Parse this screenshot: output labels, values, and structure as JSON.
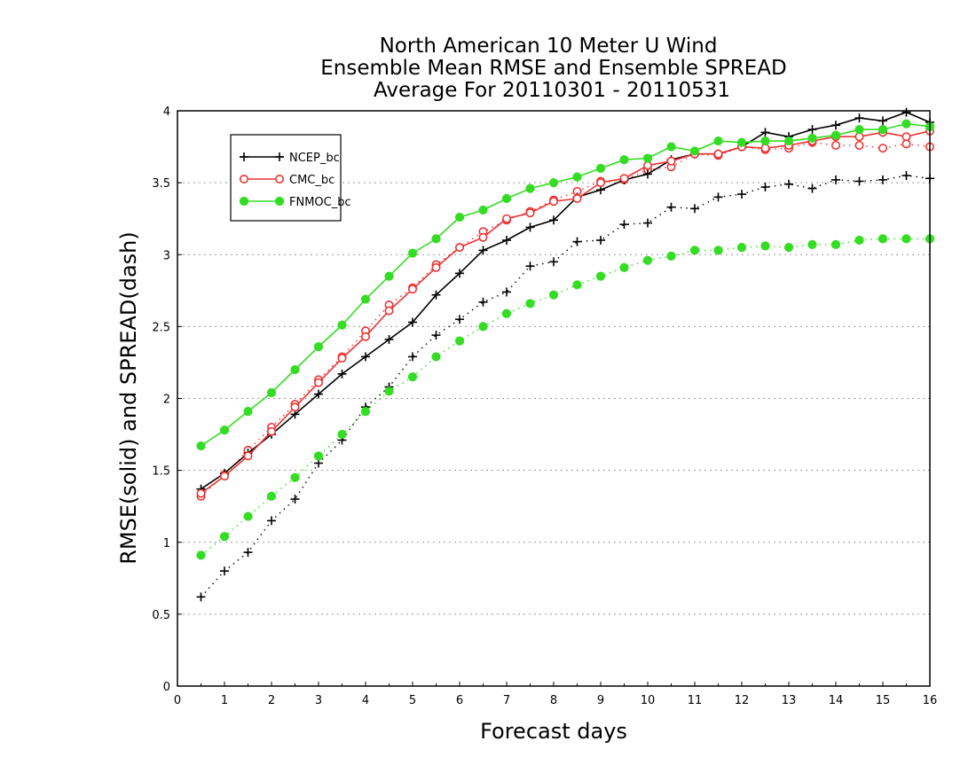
{
  "chart_data": {
    "type": "line",
    "title": [
      "North American 10 Meter U Wind",
      "Ensemble Mean RMSE and Ensemble SPREAD",
      "Average For 20110301 - 20110531"
    ],
    "xlabel": "Forecast days",
    "ylabel": "RMSE(solid) and SPREAD(dash)",
    "xlim": [
      0,
      16
    ],
    "ylim": [
      0,
      4
    ],
    "xticks": [
      "0",
      "1",
      "2",
      "3",
      "4",
      "5",
      "6",
      "7",
      "8",
      "9",
      "10",
      "11",
      "12",
      "13",
      "14",
      "15",
      "16"
    ],
    "yticks": [
      "0",
      "0.5",
      "1",
      "1.5",
      "2",
      "2.5",
      "3",
      "3.5",
      "4"
    ],
    "grid": "horizontal dotted",
    "legend_position": "top-left",
    "x": [
      0.5,
      1,
      1.5,
      2,
      2.5,
      3,
      3.5,
      4,
      4.5,
      5,
      5.5,
      6,
      6.5,
      7,
      7.5,
      8,
      8.5,
      9,
      9.5,
      10,
      10.5,
      11,
      11.5,
      12,
      12.5,
      13,
      13.5,
      14,
      14.5,
      15,
      15.5,
      16
    ],
    "series": [
      {
        "name": "NCEP_bc",
        "color": "#000000",
        "marker": "plus",
        "rmse": [
          1.37,
          1.48,
          1.62,
          1.75,
          1.89,
          2.03,
          2.17,
          2.29,
          2.41,
          2.53,
          2.72,
          2.87,
          3.03,
          3.1,
          3.19,
          3.24,
          3.4,
          3.45,
          3.52,
          3.56,
          3.66,
          3.7,
          3.7,
          3.75,
          3.85,
          3.82,
          3.87,
          3.9,
          3.95,
          3.93,
          3.99,
          3.92
        ],
        "spread": [
          0.62,
          0.8,
          0.93,
          1.15,
          1.3,
          1.55,
          1.71,
          1.94,
          2.08,
          2.29,
          2.44,
          2.55,
          2.67,
          2.74,
          2.92,
          2.95,
          3.09,
          3.1,
          3.21,
          3.22,
          3.33,
          3.32,
          3.4,
          3.42,
          3.47,
          3.49,
          3.46,
          3.52,
          3.51,
          3.52,
          3.55,
          3.53
        ]
      },
      {
        "name": "CMC_bc",
        "color": "#ee3333",
        "marker": "open-circle",
        "rmse": [
          1.34,
          1.46,
          1.6,
          1.77,
          1.94,
          2.11,
          2.28,
          2.43,
          2.61,
          2.76,
          2.91,
          3.05,
          3.12,
          3.25,
          3.29,
          3.37,
          3.39,
          3.5,
          3.53,
          3.62,
          3.65,
          3.7,
          3.7,
          3.75,
          3.74,
          3.76,
          3.79,
          3.82,
          3.82,
          3.85,
          3.82,
          3.86
        ],
        "spread": [
          1.32,
          1.47,
          1.64,
          1.8,
          1.96,
          2.13,
          2.29,
          2.47,
          2.65,
          2.77,
          2.93,
          3.05,
          3.16,
          3.24,
          3.3,
          3.38,
          3.44,
          3.51,
          3.52,
          3.59,
          3.61,
          3.7,
          3.69,
          3.75,
          3.73,
          3.74,
          3.78,
          3.76,
          3.76,
          3.74,
          3.77,
          3.75
        ]
      },
      {
        "name": "FNMOC_bc",
        "color": "#33dd22",
        "marker": "filled-circle",
        "rmse": [
          1.67,
          1.78,
          1.91,
          2.04,
          2.2,
          2.36,
          2.51,
          2.69,
          2.85,
          3.01,
          3.11,
          3.26,
          3.31,
          3.39,
          3.46,
          3.5,
          3.54,
          3.6,
          3.66,
          3.67,
          3.75,
          3.72,
          3.79,
          3.78,
          3.79,
          3.79,
          3.81,
          3.83,
          3.87,
          3.87,
          3.91,
          3.89
        ],
        "spread": [
          0.91,
          1.04,
          1.18,
          1.32,
          1.45,
          1.6,
          1.75,
          1.91,
          2.05,
          2.15,
          2.29,
          2.4,
          2.5,
          2.59,
          2.66,
          2.72,
          2.79,
          2.85,
          2.91,
          2.96,
          2.99,
          3.03,
          3.03,
          3.05,
          3.06,
          3.05,
          3.07,
          3.07,
          3.1,
          3.11,
          3.11,
          3.11
        ]
      }
    ]
  }
}
